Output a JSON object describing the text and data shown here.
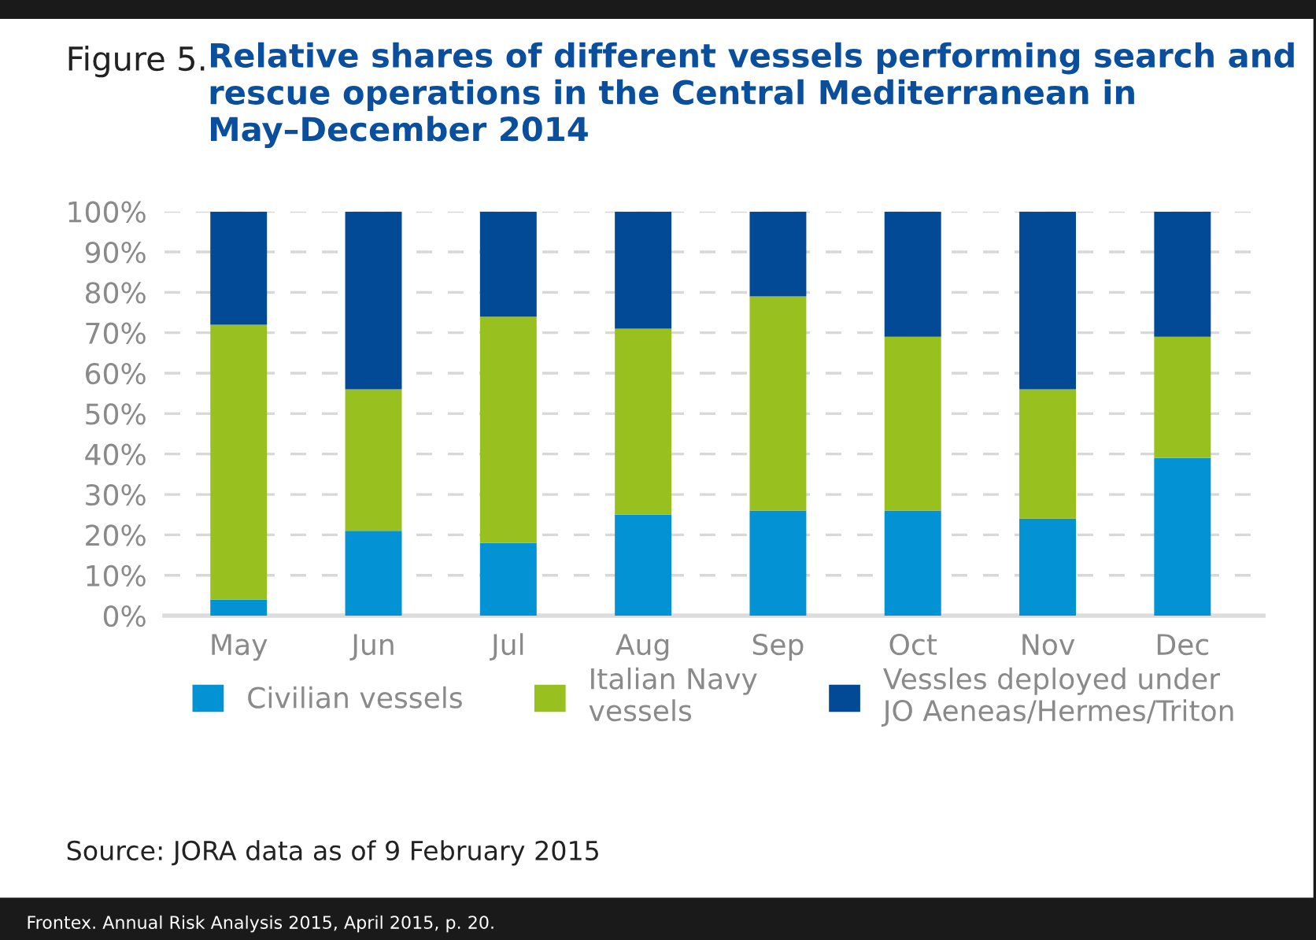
{
  "chart_data": {
    "type": "bar",
    "stacked": true,
    "title": "Relative shares of different vessels performing search and rescue operations in the Central Mediterranean in May–December 2014",
    "categories": [
      "May",
      "Jun",
      "Jul",
      "Aug",
      "Sep",
      "Oct",
      "Nov",
      "Dec"
    ],
    "series": [
      {
        "name": "Civilian vessels",
        "color": "#0392d4",
        "values": [
          4,
          21,
          18,
          25,
          26,
          26,
          24,
          39
        ]
      },
      {
        "name": "Italian Navy\nvessels",
        "color": "#98c120",
        "values": [
          68,
          35,
          56,
          46,
          53,
          43,
          32,
          30
        ]
      },
      {
        "name": "Vessles deployed under\nJO Aeneas/Hermes/Triton",
        "color": "#024a95",
        "values": [
          28,
          44,
          26,
          29,
          21,
          31,
          44,
          31
        ]
      }
    ],
    "ylim": [
      0,
      100
    ],
    "yticks": [
      {
        "value": 0,
        "label": "0%"
      },
      {
        "value": 10,
        "label": "10%"
      },
      {
        "value": 20,
        "label": "20%"
      },
      {
        "value": 30,
        "label": "30%"
      },
      {
        "value": 40,
        "label": "40%"
      },
      {
        "value": 50,
        "label": "50%"
      },
      {
        "value": 60,
        "label": "60%"
      },
      {
        "value": 70,
        "label": "70%"
      },
      {
        "value": 80,
        "label": "80%"
      },
      {
        "value": 90,
        "label": "90%"
      },
      {
        "value": 100,
        "label": "100%"
      }
    ],
    "grid": "y",
    "legend": "bottom",
    "annotations": [
      "Figure 5.",
      "Source: JORA data as of 9 February 2015",
      "Frontex. Annual Risk Analysis 2015, April 2015, p. 20."
    ]
  }
}
